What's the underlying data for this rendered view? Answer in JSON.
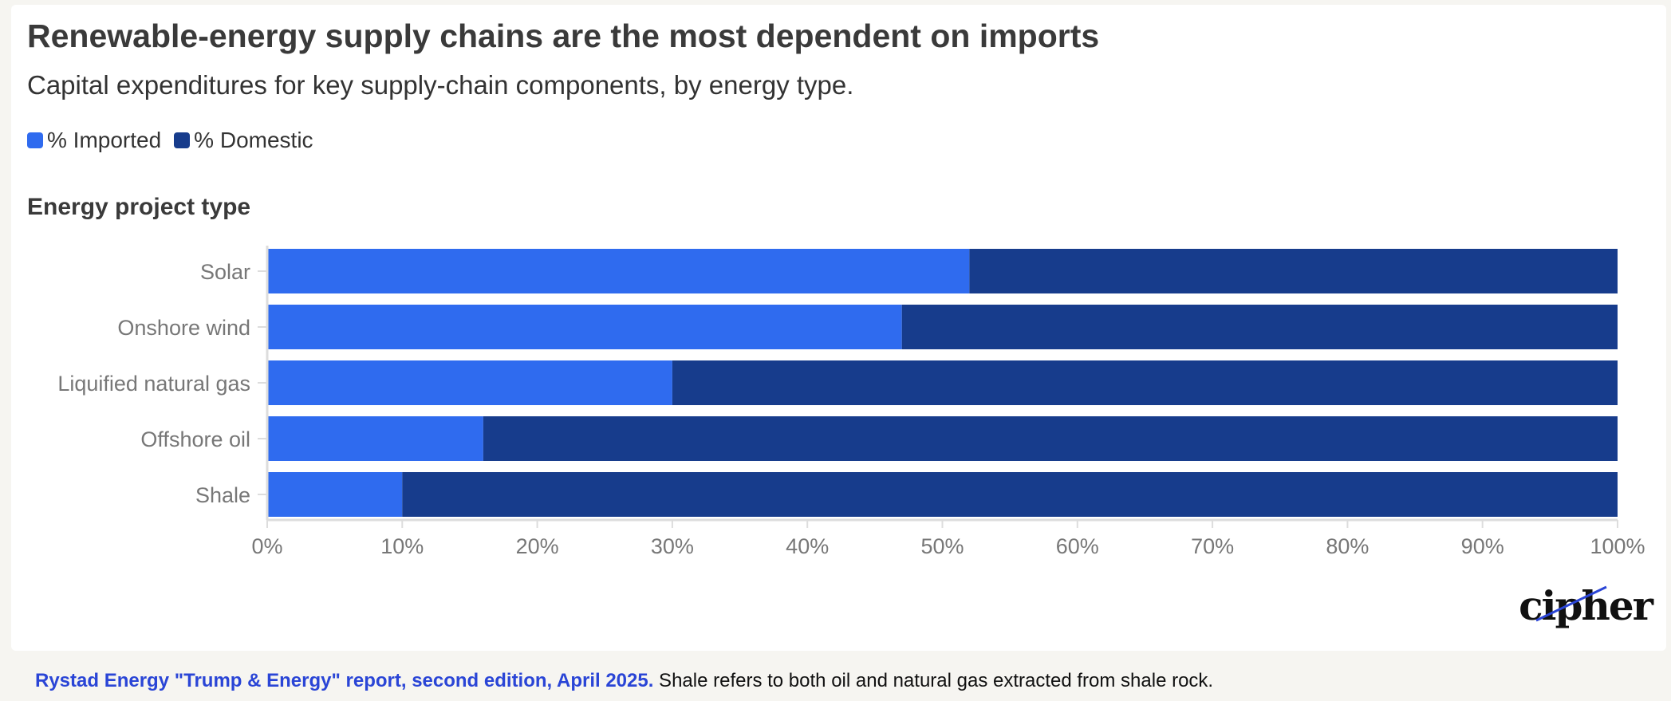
{
  "header": {
    "title": "Renewable-energy supply chains are the most dependent on imports",
    "subtitle": "Capital expenditures for key supply-chain components, by energy type."
  },
  "legend": [
    {
      "label": "% Imported",
      "color": "#2f6bef"
    },
    {
      "label": "% Domestic",
      "color": "#173c8c"
    }
  ],
  "chart_data": {
    "type": "bar",
    "orientation": "horizontal",
    "stacked": true,
    "ylabel": "Energy project type",
    "categories": [
      "Solar",
      "Onshore wind",
      "Liquified natural gas",
      "Offshore oil",
      "Shale"
    ],
    "series": [
      {
        "name": "% Imported",
        "color": "#2f6bef",
        "values": [
          52,
          47,
          30,
          16,
          10
        ]
      },
      {
        "name": "% Domestic",
        "color": "#173c8c",
        "values": [
          48,
          53,
          70,
          84,
          90
        ]
      }
    ],
    "xlim": [
      0,
      100
    ],
    "xticks": [
      0,
      10,
      20,
      30,
      40,
      50,
      60,
      70,
      80,
      90,
      100
    ],
    "xtick_labels": [
      "0%",
      "10%",
      "20%",
      "30%",
      "40%",
      "50%",
      "60%",
      "70%",
      "80%",
      "90%",
      "100%"
    ],
    "grid": false,
    "legend_position": "top-left"
  },
  "brand": {
    "logo_text": "cipher"
  },
  "footer": {
    "source": "Rystad Energy \"Trump & Energy\" report, second edition, April 2025.",
    "note": " Shale refers to both oil and natural gas extracted from shale rock."
  }
}
